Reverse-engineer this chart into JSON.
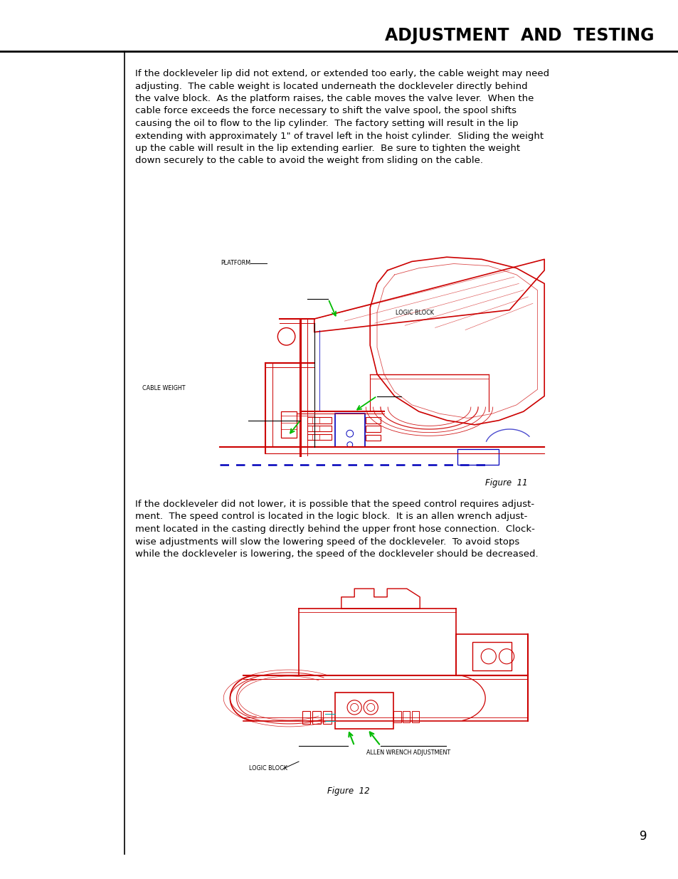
{
  "title": "ADJUSTMENT  AND  TESTING",
  "paragraph1_lines": [
    "If the dockleveler lip did not extend, or extended too early, the cable weight may need",
    "adjusting.  The cable weight is located underneath the dockleveler directly behind",
    "the valve block.  As the platform raises, the cable moves the valve lever.  When the",
    "cable force exceeds the force necessary to shift the valve spool, the spool shifts",
    "causing the oil to flow to the lip cylinder.  The factory setting will result in the lip",
    "extending with approximately 1\" of travel left in the hoist cylinder.  Sliding the weight",
    "up the cable will result in the lip extending earlier.  Be sure to tighten the weight",
    "down securely to the cable to avoid the weight from sliding on the cable."
  ],
  "figure1_caption": "Figure  11",
  "paragraph2_lines": [
    "If the dockleveler did not lower, it is possible that the speed control requires adjust-",
    "ment.  The speed control is located in the logic block.  It is an allen wrench adjust-",
    "ment located in the casting directly behind the upper front hose connection.  Clock-",
    "wise adjustments will slow the lowering speed of the dockleveler.  To avoid stops",
    "while the dockleveler is lowering, the speed of the dockleveler should be decreased."
  ],
  "figure2_caption": "Figure  12",
  "page_number": "9",
  "bg_color": "#ffffff",
  "red": "#cc0000",
  "green": "#00bb00",
  "blue": "#0000bb",
  "cyan": "#00aaaa",
  "black": "#000000",
  "text_fontsize": 9.5,
  "label_fontsize": 5.8,
  "title_fontsize": 17,
  "caption_fontsize": 8.5,
  "page_num_fontsize": 12
}
